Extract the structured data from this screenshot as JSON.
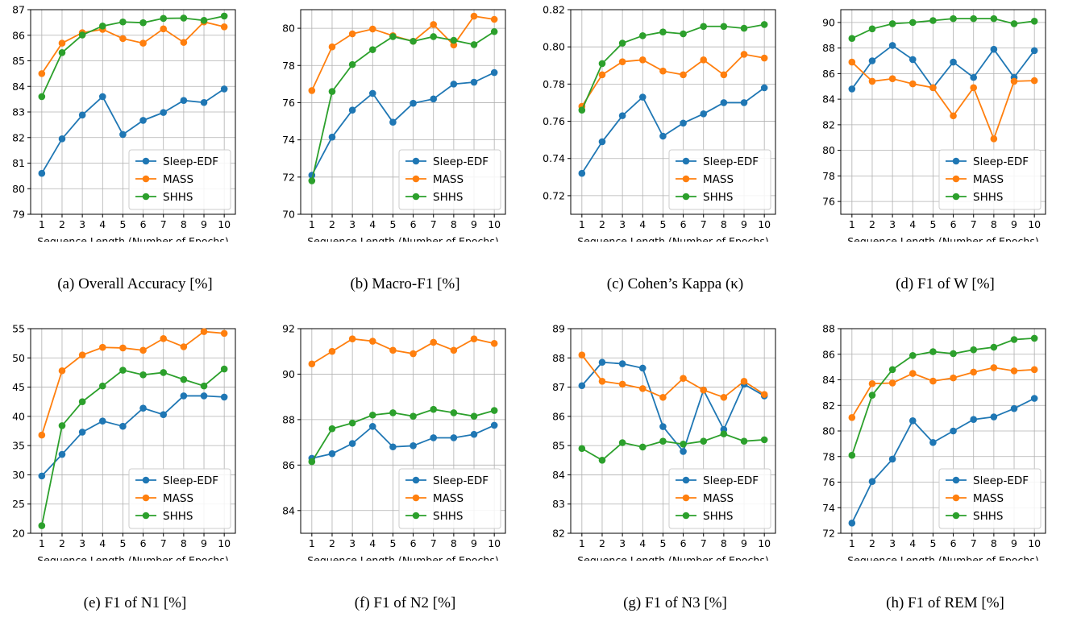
{
  "chart_data": [
    {
      "type": "line",
      "caption": "(a) Overall Accuracy [%]",
      "xlabel": "Sequence Length (Number of Epochs)",
      "x": [
        1,
        2,
        3,
        4,
        5,
        6,
        7,
        8,
        9,
        10
      ],
      "ylim": [
        79,
        87
      ],
      "yticks": [
        "79",
        "80",
        "81",
        "82",
        "83",
        "84",
        "85",
        "86",
        "87"
      ],
      "legend": "lower-right",
      "grid": true,
      "series": [
        {
          "name": "Sleep-EDF",
          "color": "#1f77b4",
          "values": [
            80.6,
            81.95,
            82.88,
            83.6,
            82.12,
            82.67,
            82.98,
            83.45,
            83.37,
            83.9
          ]
        },
        {
          "name": "MASS",
          "color": "#ff7f0e",
          "values": [
            84.5,
            85.69,
            86.1,
            86.23,
            85.87,
            85.69,
            86.25,
            85.72,
            86.52,
            86.33
          ]
        },
        {
          "name": "SHHS",
          "color": "#2ca02c",
          "values": [
            83.6,
            85.32,
            86.01,
            86.36,
            86.52,
            86.49,
            86.66,
            86.67,
            86.58,
            86.75
          ]
        }
      ]
    },
    {
      "type": "line",
      "caption": "(b) Macro-F1 [%]",
      "xlabel": "Sequence Length (Number of Epochs)",
      "x": [
        1,
        2,
        3,
        4,
        5,
        6,
        7,
        8,
        9,
        10
      ],
      "ylim": [
        70,
        81
      ],
      "yticks": [
        "70",
        "72",
        "74",
        "76",
        "78",
        "80"
      ],
      "tickvals": [
        70,
        72,
        74,
        76,
        78,
        80
      ],
      "legend": "lower-right",
      "grid": true,
      "series": [
        {
          "name": "Sleep-EDF",
          "color": "#1f77b4",
          "values": [
            72.1,
            74.15,
            75.6,
            76.5,
            74.95,
            75.97,
            76.2,
            77.0,
            77.1,
            77.62
          ]
        },
        {
          "name": "MASS",
          "color": "#ff7f0e",
          "values": [
            76.65,
            79.0,
            79.7,
            79.96,
            79.6,
            79.3,
            80.2,
            79.1,
            80.65,
            80.48
          ]
        },
        {
          "name": "SHHS",
          "color": "#2ca02c",
          "values": [
            71.8,
            76.6,
            78.05,
            78.85,
            79.55,
            79.3,
            79.55,
            79.35,
            79.12,
            79.82
          ]
        }
      ]
    },
    {
      "type": "line",
      "caption": "(c) Cohen’s Kappa (κ)",
      "xlabel": "Sequence Length (Number of Epochs)",
      "x": [
        1,
        2,
        3,
        4,
        5,
        6,
        7,
        8,
        9,
        10
      ],
      "ylim": [
        0.71,
        0.82
      ],
      "yticks": [
        "0.72",
        "0.74",
        "0.76",
        "0.78",
        "0.80",
        "0.82"
      ],
      "tickvals": [
        0.72,
        0.74,
        0.76,
        0.78,
        0.8,
        0.82
      ],
      "legend": "lower-right",
      "grid": true,
      "series": [
        {
          "name": "Sleep-EDF",
          "color": "#1f77b4",
          "values": [
            0.732,
            0.749,
            0.763,
            0.773,
            0.752,
            0.759,
            0.764,
            0.77,
            0.77,
            0.778
          ]
        },
        {
          "name": "MASS",
          "color": "#ff7f0e",
          "values": [
            0.768,
            0.785,
            0.792,
            0.793,
            0.787,
            0.785,
            0.793,
            0.785,
            0.796,
            0.794
          ]
        },
        {
          "name": "SHHS",
          "color": "#2ca02c",
          "values": [
            0.766,
            0.791,
            0.802,
            0.806,
            0.808,
            0.807,
            0.811,
            0.811,
            0.81,
            0.812
          ]
        }
      ]
    },
    {
      "type": "line",
      "caption": "(d) F1 of W [%]",
      "xlabel": "Sequence Length (Number of Epochs)",
      "x": [
        1,
        2,
        3,
        4,
        5,
        6,
        7,
        8,
        9,
        10
      ],
      "ylim": [
        75,
        91
      ],
      "yticks": [
        "76",
        "78",
        "80",
        "82",
        "84",
        "86",
        "88",
        "90"
      ],
      "tickvals": [
        76,
        78,
        80,
        82,
        84,
        86,
        88,
        90
      ],
      "legend": "lower-right",
      "grid": true,
      "series": [
        {
          "name": "Sleep-EDF",
          "color": "#1f77b4",
          "values": [
            84.8,
            87.0,
            88.2,
            87.1,
            84.9,
            86.9,
            85.7,
            87.9,
            85.7,
            87.8
          ]
        },
        {
          "name": "MASS",
          "color": "#ff7f0e",
          "values": [
            86.9,
            85.4,
            85.6,
            85.2,
            84.9,
            82.7,
            84.9,
            80.9,
            85.4,
            85.45
          ]
        },
        {
          "name": "SHHS",
          "color": "#2ca02c",
          "values": [
            88.75,
            89.5,
            89.9,
            90.0,
            90.15,
            90.3,
            90.3,
            90.3,
            89.9,
            90.1
          ]
        }
      ]
    },
    {
      "type": "line",
      "caption": "(e) F1 of N1 [%]",
      "xlabel": "Sequence Length (Number of Epochs)",
      "x": [
        1,
        2,
        3,
        4,
        5,
        6,
        7,
        8,
        9,
        10
      ],
      "ylim": [
        20,
        55
      ],
      "yticks": [
        "20",
        "25",
        "30",
        "35",
        "40",
        "45",
        "50",
        "55"
      ],
      "tickvals": [
        20,
        25,
        30,
        35,
        40,
        45,
        50,
        55
      ],
      "legend": "lower-right",
      "grid": true,
      "series": [
        {
          "name": "Sleep-EDF",
          "color": "#1f77b4",
          "values": [
            29.8,
            33.5,
            37.3,
            39.2,
            38.3,
            41.4,
            40.3,
            43.5,
            43.5,
            43.3
          ]
        },
        {
          "name": "MASS",
          "color": "#ff7f0e",
          "values": [
            36.8,
            47.8,
            50.5,
            51.8,
            51.7,
            51.3,
            53.3,
            51.9,
            54.5,
            54.2
          ]
        },
        {
          "name": "SHHS",
          "color": "#2ca02c",
          "values": [
            21.3,
            38.4,
            42.5,
            45.2,
            47.9,
            47.1,
            47.5,
            46.3,
            45.2,
            48.1
          ]
        }
      ]
    },
    {
      "type": "line",
      "caption": "(f) F1 of N2 [%]",
      "xlabel": "Sequence Length (Number of Epochs)",
      "x": [
        1,
        2,
        3,
        4,
        5,
        6,
        7,
        8,
        9,
        10
      ],
      "ylim": [
        83,
        92
      ],
      "yticks": [
        "84",
        "86",
        "88",
        "90",
        "92"
      ],
      "tickvals": [
        84,
        86,
        88,
        90,
        92
      ],
      "legend": "lower-right",
      "grid": true,
      "series": [
        {
          "name": "Sleep-EDF",
          "color": "#1f77b4",
          "values": [
            86.3,
            86.5,
            86.95,
            87.7,
            86.8,
            86.85,
            87.2,
            87.2,
            87.35,
            87.75
          ]
        },
        {
          "name": "MASS",
          "color": "#ff7f0e",
          "values": [
            90.45,
            91.0,
            91.55,
            91.45,
            91.05,
            90.9,
            91.4,
            91.05,
            91.55,
            91.35
          ]
        },
        {
          "name": "SHHS",
          "color": "#2ca02c",
          "values": [
            86.15,
            87.6,
            87.85,
            88.2,
            88.3,
            88.15,
            88.45,
            88.3,
            88.15,
            88.4
          ]
        }
      ]
    },
    {
      "type": "line",
      "caption": "(g) F1 of N3 [%]",
      "xlabel": "Sequence Length (Number of Epochs)",
      "x": [
        1,
        2,
        3,
        4,
        5,
        6,
        7,
        8,
        9,
        10
      ],
      "ylim": [
        82,
        89
      ],
      "yticks": [
        "82",
        "83",
        "84",
        "85",
        "86",
        "87",
        "88",
        "89"
      ],
      "tickvals": [
        82,
        83,
        84,
        85,
        86,
        87,
        88,
        89
      ],
      "legend": "lower-right",
      "grid": true,
      "series": [
        {
          "name": "Sleep-EDF",
          "color": "#1f77b4",
          "values": [
            87.05,
            87.85,
            87.8,
            87.65,
            85.65,
            84.8,
            86.9,
            85.55,
            87.1,
            86.7
          ]
        },
        {
          "name": "MASS",
          "color": "#ff7f0e",
          "values": [
            88.1,
            87.2,
            87.1,
            86.95,
            86.65,
            87.3,
            86.9,
            86.65,
            87.2,
            86.75
          ]
        },
        {
          "name": "SHHS",
          "color": "#2ca02c",
          "values": [
            84.9,
            84.5,
            85.1,
            84.95,
            85.15,
            85.05,
            85.15,
            85.4,
            85.15,
            85.2
          ]
        }
      ]
    },
    {
      "type": "line",
      "caption": "(h) F1 of REM [%]",
      "xlabel": "Sequence Length (Number of Epochs)",
      "x": [
        1,
        2,
        3,
        4,
        5,
        6,
        7,
        8,
        9,
        10
      ],
      "ylim": [
        72,
        88
      ],
      "yticks": [
        "72",
        "74",
        "76",
        "78",
        "80",
        "82",
        "84",
        "86",
        "88"
      ],
      "tickvals": [
        72,
        74,
        76,
        78,
        80,
        82,
        84,
        86,
        88
      ],
      "legend": "lower-right",
      "grid": true,
      "series": [
        {
          "name": "Sleep-EDF",
          "color": "#1f77b4",
          "values": [
            72.8,
            76.05,
            77.8,
            80.8,
            79.1,
            80.0,
            80.9,
            81.1,
            81.75,
            82.55
          ]
        },
        {
          "name": "MASS",
          "color": "#ff7f0e",
          "values": [
            81.05,
            83.7,
            83.75,
            84.5,
            83.9,
            84.15,
            84.6,
            84.95,
            84.7,
            84.8
          ]
        },
        {
          "name": "SHHS",
          "color": "#2ca02c",
          "values": [
            78.1,
            82.8,
            84.8,
            85.9,
            86.2,
            86.05,
            86.35,
            86.55,
            87.15,
            87.25
          ]
        }
      ]
    }
  ]
}
